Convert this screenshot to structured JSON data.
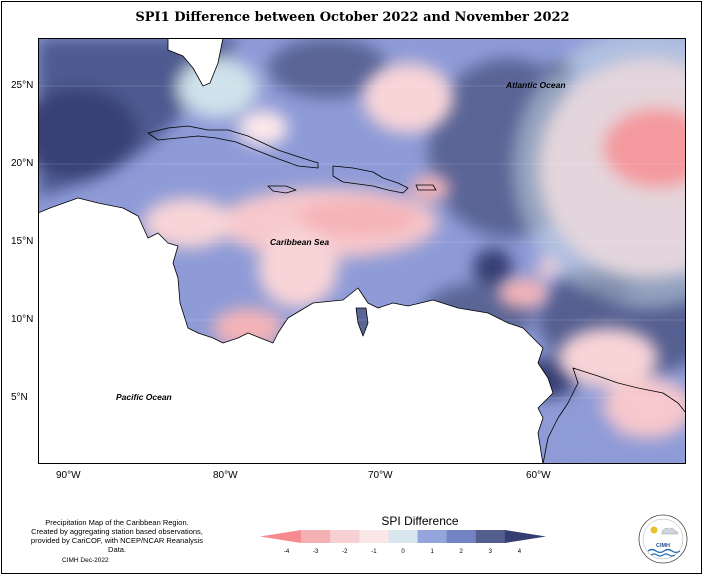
{
  "title": "SPI1 Difference between October 2022 and November 2022",
  "map_labels": {
    "atlantic": "Atlantic Ocean",
    "caribbean": "Caribbean Sea",
    "pacific": "Pacific Ocean"
  },
  "lat_ticks": [
    "25°N",
    "20°N",
    "15°N",
    "10°N",
    "5°N"
  ],
  "lon_ticks": [
    "90°W",
    "80°W",
    "70°W",
    "60°W"
  ],
  "caption_lines": [
    "Precipitation Map of the Caribbean Region.",
    "Created by aggregating station based observations,",
    "provided by CariCOF, with NCEP/NCAR Reanalysis Data."
  ],
  "credit": "CIMH Dec-2022",
  "legend": {
    "title": "SPI Difference",
    "ticks": [
      "-4",
      "-3",
      "-2",
      "-1",
      "0",
      "1",
      "2",
      "3",
      "4"
    ],
    "colors": [
      "#f58a8f",
      "#f4b1b4",
      "#f7d0d3",
      "#fbe6e8",
      "#d8e7ee",
      "#93a5db",
      "#7384c4",
      "#545e8c",
      "#353e73"
    ]
  },
  "logo_text": "CIMH",
  "colors": {
    "sea_neg_strong": "#f4999d",
    "sea_neg": "#f7c8cc",
    "sea_neutral": "#fde8ea",
    "sea_light": "#cfe1ea",
    "sea_pos": "#8b9ad8",
    "sea_pos2": "#5a6596",
    "sea_pos3": "#363e72"
  }
}
